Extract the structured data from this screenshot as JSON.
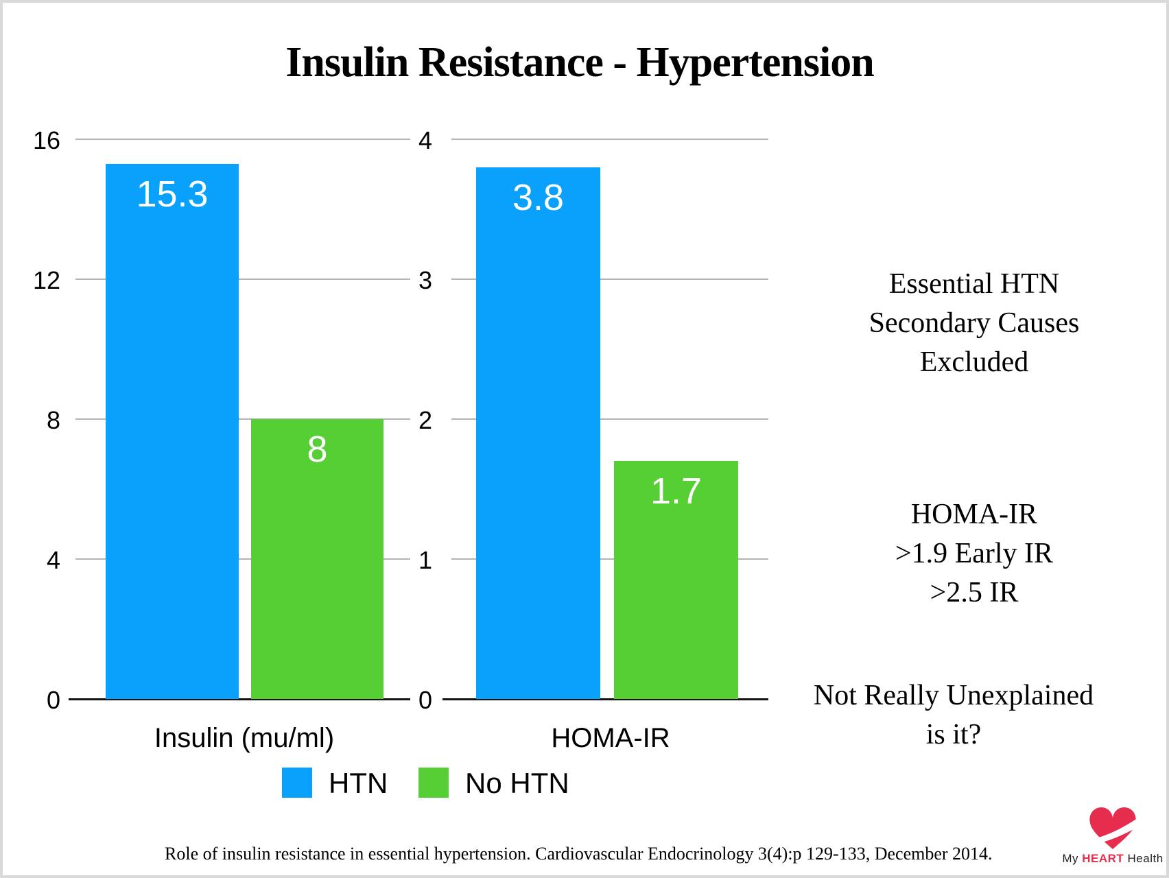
{
  "slide": {
    "title": "Insulin Resistance - Hypertension"
  },
  "colors": {
    "htn": "#0aa1fc",
    "no_htn": "#56cf35",
    "gridline": "#b3b3b3",
    "axis": "#111111",
    "logo_red": "#e62d4d"
  },
  "legend": {
    "items": [
      {
        "label": "HTN",
        "color_key": "htn"
      },
      {
        "label": "No HTN",
        "color_key": "no_htn"
      }
    ]
  },
  "chart_data": [
    {
      "type": "bar",
      "panel": "left",
      "categories": [
        "HTN",
        "No HTN"
      ],
      "values": [
        15.3,
        8
      ],
      "value_labels": [
        "15.3",
        "8"
      ],
      "series_color_keys": [
        "htn",
        "no_htn"
      ],
      "xlabel": "Insulin (mu/ml)",
      "ylabel": "",
      "ylim": [
        0,
        16
      ],
      "yticks": [
        0,
        4,
        8,
        12,
        16
      ],
      "grid": true,
      "legend_position": "bottom"
    },
    {
      "type": "bar",
      "panel": "right",
      "categories": [
        "HTN",
        "No HTN"
      ],
      "values": [
        3.8,
        1.7
      ],
      "value_labels": [
        "3.8",
        "1.7"
      ],
      "series_color_keys": [
        "htn",
        "no_htn"
      ],
      "xlabel": "HOMA-IR",
      "ylabel": "",
      "ylim": [
        0,
        4
      ],
      "yticks": [
        0,
        1,
        2,
        3,
        4
      ],
      "grid": true,
      "legend_position": "bottom"
    }
  ],
  "notes": {
    "block1": {
      "lines": [
        "Essential HTN",
        "Secondary Causes",
        "Excluded"
      ]
    },
    "block2": {
      "lines": [
        "HOMA-IR",
        ">1.9 Early IR",
        ">2.5 IR"
      ]
    },
    "block3": {
      "lines": [
        "Not Really Unexplained",
        "is it?"
      ]
    }
  },
  "footer": {
    "citation": "Role of insulin resistance in essential hypertension. Cardiovascular Endocrinology 3(4):p 129-133, December 2014."
  },
  "logo": {
    "prefix": "My ",
    "emphasis": "HEART",
    "suffix": " Health"
  }
}
